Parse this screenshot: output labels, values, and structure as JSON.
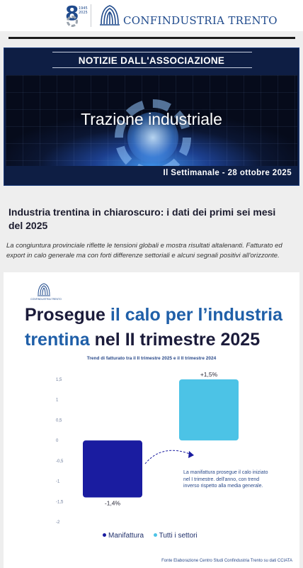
{
  "header": {
    "badge_number": "8",
    "badge_years": [
      "1945",
      "2025"
    ],
    "org_name": "CONFINDUSTRIA TRENTO"
  },
  "banner": {
    "section_title": "NOTIZIE DALL'ASSOCIAZIONE",
    "headline": "Trazione industriale",
    "date_line": "Il Settimanale - 28 ottobre 2025"
  },
  "article": {
    "title": "Industria trentina in chiaroscuro: i dati dei primi sei mesi del 2025",
    "subtitle": "La congiuntura provinciale riflette le tensioni globali e mostra risultati altalenanti. Fatturato ed export in calo generale ma con forti differenze settoriali e alcuni segnali positivi all'orizzonte."
  },
  "infographic": {
    "logo_text": "CONFINDUSTRIA TRENTO",
    "headline_l1_a": "Prosegue ",
    "headline_l1_b": "il calo per l’industria",
    "headline_l2_a": "trentina",
    "headline_l2_b": " nel II trimestre 2025",
    "annotation": "La manifattura prosegue il calo iniziato nel I trimestre. dell'anno, con trend inverso rispetto alla media generale.",
    "source": "Fonte Elaborazione Centro Studi Confindustria Trento su dati CCIATA"
  },
  "chart_data": {
    "type": "bar",
    "title": "",
    "subtitle": "Trend di fatturato tra il II trimestre 2025 e il II trimestre 2024",
    "categories": [
      "Manifattura",
      "Tutti i settori"
    ],
    "values": [
      -1.4,
      1.5
    ],
    "data_labels": [
      "-1,4%",
      "+1,5%"
    ],
    "colors": [
      "#1a1ca0",
      "#4cc3e6"
    ],
    "ylim": [
      -2,
      1.5
    ],
    "yticks": [
      1.5,
      1,
      0.5,
      0,
      -0.5,
      -1,
      -1.5,
      -2
    ],
    "ytick_labels": [
      "1,5",
      "1",
      "0,5",
      "0",
      "-0,5",
      "-1",
      "-1,5",
      "-2"
    ],
    "grid": false,
    "legend": "bottom"
  }
}
